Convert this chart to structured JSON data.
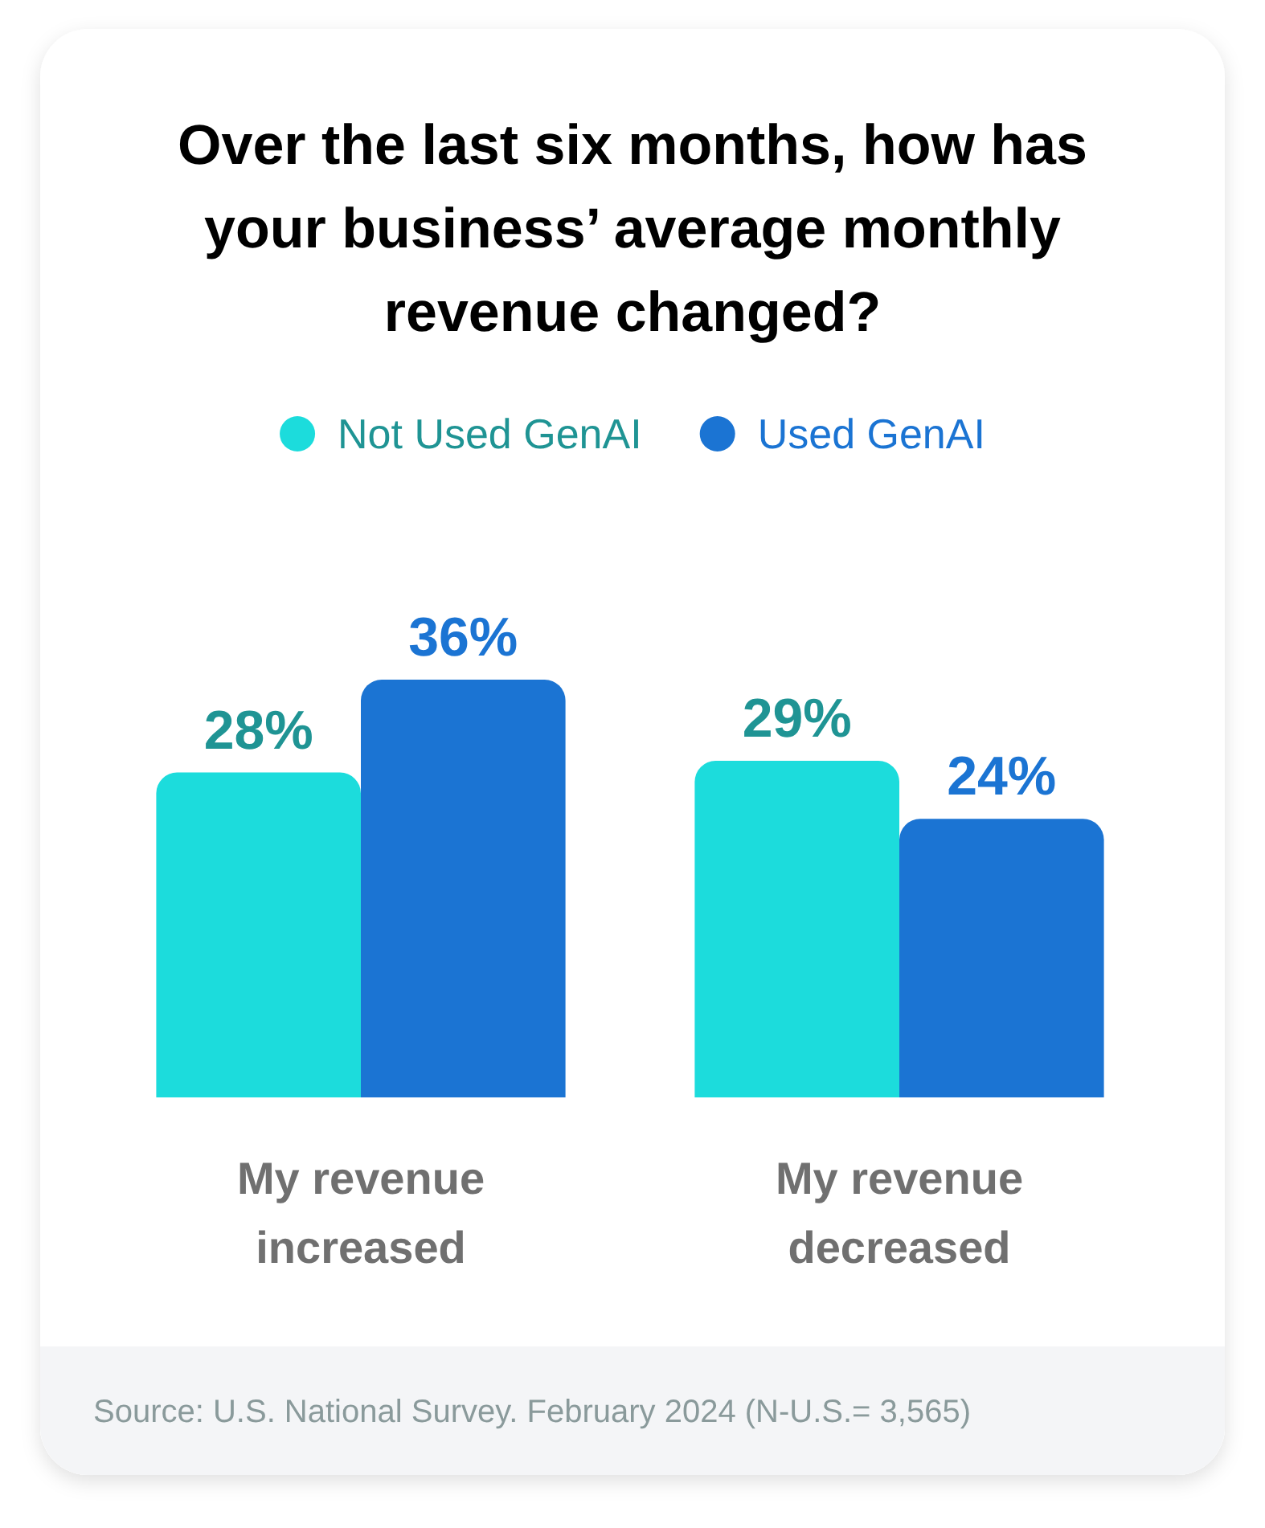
{
  "chart_data": {
    "type": "bar",
    "title": "Over the last six months, how has your business’ average monthly revenue changed?",
    "categories": [
      "My revenue increased",
      "My revenue decreased"
    ],
    "series": [
      {
        "name": "Not Used GenAI",
        "color": "#1cdcdc",
        "values": [
          28,
          29
        ],
        "value_labels": [
          "28%",
          "29%"
        ]
      },
      {
        "name": "Used GenAI",
        "color": "#1b74d3",
        "values": [
          36,
          24
        ],
        "value_labels": [
          "36%",
          "24%"
        ]
      }
    ],
    "legend": "top",
    "annotations": [
      "Source: U.S. National Survey. February 2024 (N-U.S.= 3,565)"
    ]
  }
}
